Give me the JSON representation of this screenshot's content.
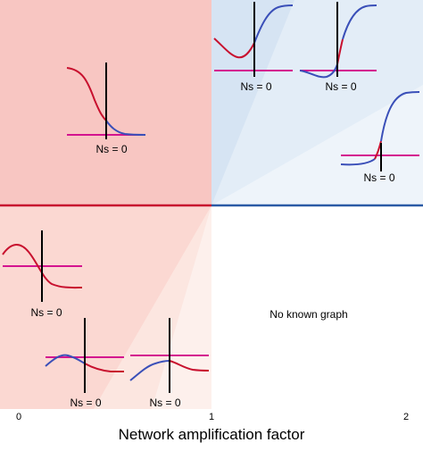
{
  "axis": {
    "xlabel": "Network amplification factor",
    "ticks": [
      "0",
      "1",
      "2"
    ]
  },
  "regions": {
    "empty_label": "No known graph"
  },
  "insets": {
    "ns_label": "Ns = 0"
  },
  "colors": {
    "quadrant_top_left": "#f8c6c2",
    "quadrant_top_right": "#d6e4f3",
    "quadrant_top_right_light": "#ecf3fa",
    "quadrant_bottom_left": "#fbd8d2",
    "quadrant_bottom_left_light": "#fdeeea",
    "divider_left": "#c8102e",
    "divider_right": "#2b5aa5",
    "curve_red": "#c8102e",
    "curve_blue": "#3a4fb8",
    "baseline_magenta": "#d4148f",
    "marker_black": "#000000"
  }
}
